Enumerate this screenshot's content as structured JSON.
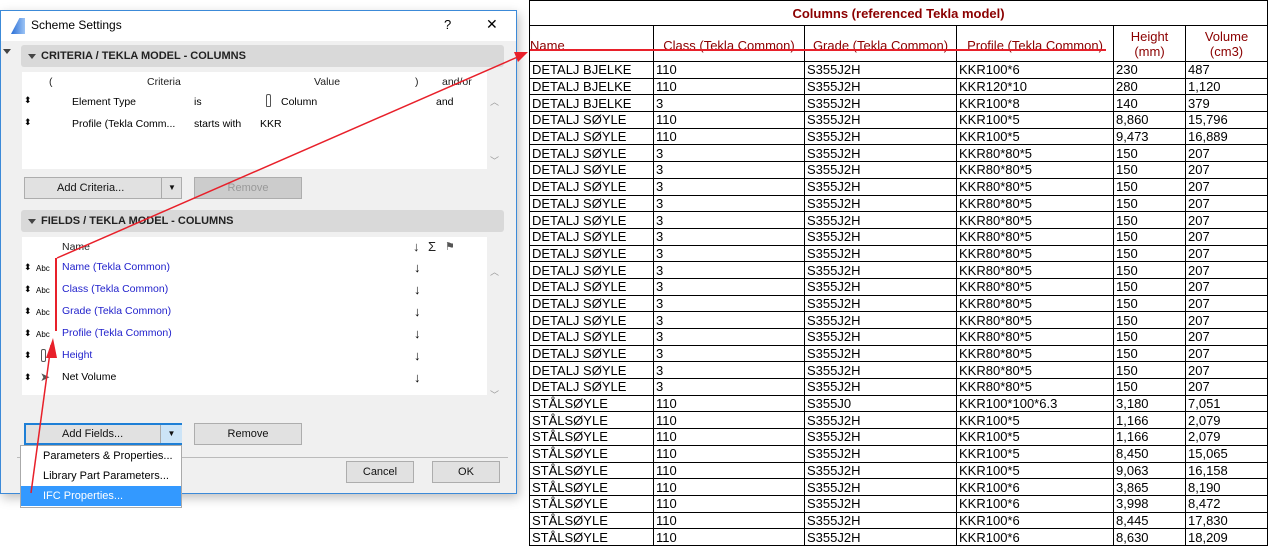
{
  "dialog": {
    "title": "Scheme Settings",
    "help": "?",
    "close": "✕",
    "criteria": {
      "header": "CRITERIA /  TEKLA MODEL - COLUMNS",
      "columns": [
        "(",
        "Criteria",
        "Value",
        ")",
        "and/or"
      ],
      "rows": [
        {
          "criteria": "Element Type",
          "op": "is",
          "value": "Column",
          "andor": "and",
          "icon": "column-icon"
        },
        {
          "criteria": "Profile (Tekla Comm...",
          "op": "starts with",
          "value": "KKR",
          "andor": ""
        }
      ],
      "add": "Add Criteria...",
      "remove": "Remove"
    },
    "fields": {
      "header": "FIELDS /  TEKLA MODEL - COLUMNS",
      "columns": {
        "name": "Name",
        "sort": "↓",
        "sum": "Σ",
        "flag": "flag-icon"
      },
      "rows": [
        {
          "type": "Abc",
          "name": "Name (Tekla Common)"
        },
        {
          "type": "Abc",
          "name": "Class (Tekla Common)"
        },
        {
          "type": "Abc",
          "name": "Grade (Tekla Common)"
        },
        {
          "type": "Abc",
          "name": "Profile (Tekla Common)"
        },
        {
          "type": "column-icon",
          "name": "Height"
        },
        {
          "type": "cursor-icon",
          "name": "Net Volume"
        }
      ],
      "add": "Add Fields...",
      "remove": "Remove",
      "menu": [
        "Parameters & Properties...",
        "Library Part Parameters...",
        "IFC Properties..."
      ],
      "menu_selected": 2
    },
    "cancel": "Cancel",
    "ok": "OK"
  },
  "table": {
    "title": "Columns (referenced Tekla model)",
    "headers": [
      "Name",
      "Class (Tekla Common)",
      "Grade (Tekla Common)",
      "Profile (Tekla Common)",
      "Height\n(mm)",
      "Volume\n(cm3)"
    ],
    "rows": [
      [
        "DETALJ BJELKE",
        "110",
        "S355J2H",
        "KKR100*6",
        "230",
        "487"
      ],
      [
        "DETALJ BJELKE",
        "110",
        "S355J2H",
        "KKR120*10",
        "280",
        "1,120"
      ],
      [
        "DETALJ BJELKE",
        "3",
        "S355J2H",
        "KKR100*8",
        "140",
        "379"
      ],
      [
        "DETALJ SØYLE",
        "110",
        "S355J2H",
        "KKR100*5",
        "8,860",
        "15,796"
      ],
      [
        "DETALJ SØYLE",
        "110",
        "S355J2H",
        "KKR100*5",
        "9,473",
        "16,889"
      ],
      [
        "DETALJ SØYLE",
        "3",
        "S355J2H",
        "KKR80*80*5",
        "150",
        "207"
      ],
      [
        "DETALJ SØYLE",
        "3",
        "S355J2H",
        "KKR80*80*5",
        "150",
        "207"
      ],
      [
        "DETALJ SØYLE",
        "3",
        "S355J2H",
        "KKR80*80*5",
        "150",
        "207"
      ],
      [
        "DETALJ SØYLE",
        "3",
        "S355J2H",
        "KKR80*80*5",
        "150",
        "207"
      ],
      [
        "DETALJ SØYLE",
        "3",
        "S355J2H",
        "KKR80*80*5",
        "150",
        "207"
      ],
      [
        "DETALJ SØYLE",
        "3",
        "S355J2H",
        "KKR80*80*5",
        "150",
        "207"
      ],
      [
        "DETALJ SØYLE",
        "3",
        "S355J2H",
        "KKR80*80*5",
        "150",
        "207"
      ],
      [
        "DETALJ SØYLE",
        "3",
        "S355J2H",
        "KKR80*80*5",
        "150",
        "207"
      ],
      [
        "DETALJ SØYLE",
        "3",
        "S355J2H",
        "KKR80*80*5",
        "150",
        "207"
      ],
      [
        "DETALJ SØYLE",
        "3",
        "S355J2H",
        "KKR80*80*5",
        "150",
        "207"
      ],
      [
        "DETALJ SØYLE",
        "3",
        "S355J2H",
        "KKR80*80*5",
        "150",
        "207"
      ],
      [
        "DETALJ SØYLE",
        "3",
        "S355J2H",
        "KKR80*80*5",
        "150",
        "207"
      ],
      [
        "DETALJ SØYLE",
        "3",
        "S355J2H",
        "KKR80*80*5",
        "150",
        "207"
      ],
      [
        "DETALJ SØYLE",
        "3",
        "S355J2H",
        "KKR80*80*5",
        "150",
        "207"
      ],
      [
        "DETALJ SØYLE",
        "3",
        "S355J2H",
        "KKR80*80*5",
        "150",
        "207"
      ],
      [
        "STÅLSØYLE",
        "110",
        "S355J0",
        "KKR100*100*6.3",
        "3,180",
        "7,051"
      ],
      [
        "STÅLSØYLE",
        "110",
        "S355J2H",
        "KKR100*5",
        "1,166",
        "2,079"
      ],
      [
        "STÅLSØYLE",
        "110",
        "S355J2H",
        "KKR100*5",
        "1,166",
        "2,079"
      ],
      [
        "STÅLSØYLE",
        "110",
        "S355J2H",
        "KKR100*5",
        "8,450",
        "15,065"
      ],
      [
        "STÅLSØYLE",
        "110",
        "S355J2H",
        "KKR100*5",
        "9,063",
        "16,158"
      ],
      [
        "STÅLSØYLE",
        "110",
        "S355J2H",
        "KKR100*6",
        "3,865",
        "8,190"
      ],
      [
        "STÅLSØYLE",
        "110",
        "S355J2H",
        "KKR100*6",
        "3,998",
        "8,472"
      ],
      [
        "STÅLSØYLE",
        "110",
        "S355J2H",
        "KKR100*6",
        "8,445",
        "17,830"
      ],
      [
        "STÅLSØYLE",
        "110",
        "S355J2H",
        "KKR100*6",
        "8,630",
        "18,209"
      ]
    ]
  },
  "colors": {
    "annotation": "#e8202a",
    "header_text": "#8b0000",
    "field_blue": "#2222cc",
    "menu_highlight": "#3399ff"
  }
}
